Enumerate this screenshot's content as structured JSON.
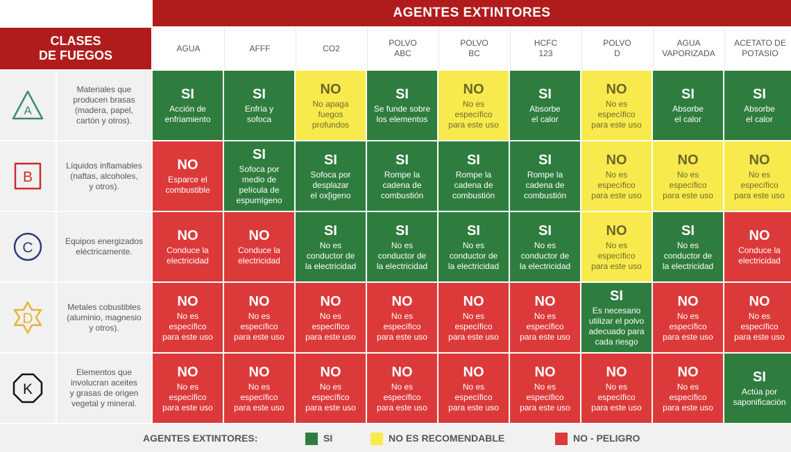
{
  "header": {
    "agentes_title": "AGENTES EXTINTORES",
    "clases_title": "CLASES\nDE FUEGOS"
  },
  "agents": [
    "AGUA",
    "AFFF",
    "CO2",
    "POLVO\nABC",
    "POLVO\nBC",
    "HCFC\n123",
    "POLVO\nD",
    "AGUA\nVAPORIZADA",
    "ACETATO DE\nPOTASIO"
  ],
  "colors": {
    "si": "#2e7d3e",
    "no_recomendable": "#f8ea4c",
    "peligro": "#dc3a3a",
    "header": "#b01c1c"
  },
  "classes": [
    {
      "letter": "A",
      "icon": "triangle-icon",
      "icon_color": "#3c8a6a",
      "description": "Materiales que\nproducen brasas\n(madera, papel,\ncartón y otros).",
      "cells": [
        {
          "status": "g",
          "value": "SI",
          "text": "Acción de\nenfriamiento"
        },
        {
          "status": "g",
          "value": "SI",
          "text": "Enfría y\nsofoca"
        },
        {
          "status": "y",
          "value": "NO",
          "text": "No apaga\nfuegos\nprofundos"
        },
        {
          "status": "g",
          "value": "SI",
          "text": "Se funde sobre\nlos elementos"
        },
        {
          "status": "y",
          "value": "NO",
          "text": "No es\nespecífico\npara este uso"
        },
        {
          "status": "g",
          "value": "SI",
          "text": "Absorbe\nel calor"
        },
        {
          "status": "y",
          "value": "NO",
          "text": "No es\nespecífico\npara este uso"
        },
        {
          "status": "g",
          "value": "SI",
          "text": "Absorbe\nel calor"
        },
        {
          "status": "g",
          "value": "SI",
          "text": "Absorbe\nel calor"
        }
      ]
    },
    {
      "letter": "B",
      "icon": "square-icon",
      "icon_color": "#cc2b2b",
      "description": "Líquidos inflamables\n(naftas, alcoholes,\ny otros).",
      "cells": [
        {
          "status": "r",
          "value": "NO",
          "text": "Esparce el\ncombustible"
        },
        {
          "status": "g",
          "value": "SI",
          "text": "Sofoca por\nmedio de\npelícula de\nespumígeno"
        },
        {
          "status": "g",
          "value": "SI",
          "text": "Sofoca por\ndesplazar\nel ox[igeno"
        },
        {
          "status": "g",
          "value": "SI",
          "text": "Rompe la\ncadena de\ncombustión"
        },
        {
          "status": "g",
          "value": "SI",
          "text": "Rompe la\ncadena de\ncombustión"
        },
        {
          "status": "g",
          "value": "SI",
          "text": "Rompe la\ncadena de\ncombustión"
        },
        {
          "status": "y",
          "value": "NO",
          "text": "No es\nespecífico\npara este uso"
        },
        {
          "status": "y",
          "value": "NO",
          "text": "No es\nespecífico\npara este uso"
        },
        {
          "status": "y",
          "value": "NO",
          "text": "No es\nespecífico\npara este uso"
        }
      ]
    },
    {
      "letter": "C",
      "icon": "circle-icon",
      "icon_color": "#2e3a7a",
      "description": "Equipos energizados\neléctricamente.",
      "cells": [
        {
          "status": "r",
          "value": "NO",
          "text": "Conduce la\nelectricidad"
        },
        {
          "status": "r",
          "value": "NO",
          "text": "Conduce la\nelectricidad"
        },
        {
          "status": "g",
          "value": "SI",
          "text": "No es\nconductor de\nla electricidad"
        },
        {
          "status": "g",
          "value": "SI",
          "text": "No es\nconductor de\nla electricidad"
        },
        {
          "status": "g",
          "value": "SI",
          "text": "No es\nconductor de\nla electricidad"
        },
        {
          "status": "g",
          "value": "SI",
          "text": "No es\nconductor de\nla electricidad"
        },
        {
          "status": "y",
          "value": "NO",
          "text": "No es\nespecífico\npara este uso"
        },
        {
          "status": "g",
          "value": "SI",
          "text": "No es\nconductor de\nla electricidad"
        },
        {
          "status": "r",
          "value": "NO",
          "text": "Conduce la\nelectricidad"
        }
      ]
    },
    {
      "letter": "D",
      "icon": "star-icon",
      "icon_color": "#e8b23a",
      "description": "Metales cobustibles\n(aluminio, magnesio\ny otros).",
      "cells": [
        {
          "status": "r",
          "value": "NO",
          "text": "No es\nespecífico\npara este uso"
        },
        {
          "status": "r",
          "value": "NO",
          "text": "No es\nespecífico\npara este uso"
        },
        {
          "status": "r",
          "value": "NO",
          "text": "No es\nespecífico\npara este uso"
        },
        {
          "status": "r",
          "value": "NO",
          "text": "No es\nespecífico\npara este uso"
        },
        {
          "status": "r",
          "value": "NO",
          "text": "No es\nespecífico\npara este uso"
        },
        {
          "status": "r",
          "value": "NO",
          "text": "No es\nespecífico\npara este uso"
        },
        {
          "status": "g",
          "value": "SI",
          "text": "Es necesario\nutilizar el polvo\nadecuado para\ncada riesgo"
        },
        {
          "status": "r",
          "value": "NO",
          "text": "No es\nespecífico\npara este uso"
        },
        {
          "status": "r",
          "value": "NO",
          "text": "No es\nespecífico\npara este uso"
        }
      ]
    },
    {
      "letter": "K",
      "icon": "octagon-icon",
      "icon_color": "#111111",
      "description": "Elementos que\ninvolucran aceites\ny grasas de origen\nvegetal y mineral.",
      "cells": [
        {
          "status": "r",
          "value": "NO",
          "text": "No es\nespecífico\npara este uso"
        },
        {
          "status": "r",
          "value": "NO",
          "text": "No es\nespecífico\npara este uso"
        },
        {
          "status": "r",
          "value": "NO",
          "text": "No es\nespecífico\npara este uso"
        },
        {
          "status": "r",
          "value": "NO",
          "text": "No es\nespecífico\npara este uso"
        },
        {
          "status": "r",
          "value": "NO",
          "text": "No es\nespecífico\npara este uso"
        },
        {
          "status": "r",
          "value": "NO",
          "text": "No es\nespecífico\npara este uso"
        },
        {
          "status": "r",
          "value": "NO",
          "text": "No es\nespecífico\npara este uso"
        },
        {
          "status": "r",
          "value": "NO",
          "text": "No es\nespecífico\npara este uso"
        },
        {
          "status": "g",
          "value": "SI",
          "text": "Actúa por\nsaponificación"
        }
      ]
    }
  ],
  "legend": {
    "title": "AGENTES EXTINTORES:",
    "items": [
      {
        "status": "g",
        "label": "SI"
      },
      {
        "status": "y",
        "label": "NO ES RECOMENDABLE"
      },
      {
        "status": "r",
        "label": "NO - PELIGRO"
      }
    ]
  }
}
